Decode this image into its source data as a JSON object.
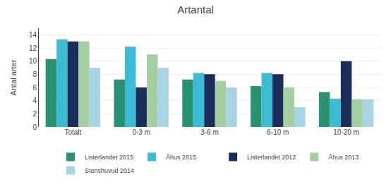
{
  "chart_data": {
    "type": "bar",
    "title": "Artantal",
    "ylabel": "Antal arter",
    "categories": [
      "Totalt",
      "0-3 m",
      "3-6 m",
      "6-10 m",
      "10-20 m"
    ],
    "series": [
      {
        "name": "Listerlandet 2015",
        "color": "#2a9272",
        "values": [
          10.3,
          7.2,
          7.2,
          6.2,
          5.3
        ]
      },
      {
        "name": "Åhus 2015",
        "color": "#3bbcd4",
        "values": [
          13.3,
          12.2,
          8.2,
          8.2,
          4.3
        ]
      },
      {
        "name": "Listerlandet 2012",
        "color": "#1b2d5b",
        "values": [
          13.0,
          6.0,
          8.0,
          8.0,
          10.0
        ]
      },
      {
        "name": "Åhus 2013",
        "color": "#a5cfa0",
        "values": [
          13.0,
          11.0,
          7.0,
          6.0,
          4.2
        ]
      },
      {
        "name": "Stenshuvud 2014",
        "color": "#a8d4e6",
        "values": [
          9.0,
          9.0,
          6.0,
          3.0,
          4.2
        ]
      }
    ],
    "ylim": [
      0,
      15
    ],
    "yticks": [
      0,
      2,
      4,
      6,
      8,
      10,
      12,
      14
    ],
    "grid": true,
    "legend": "bottom"
  }
}
